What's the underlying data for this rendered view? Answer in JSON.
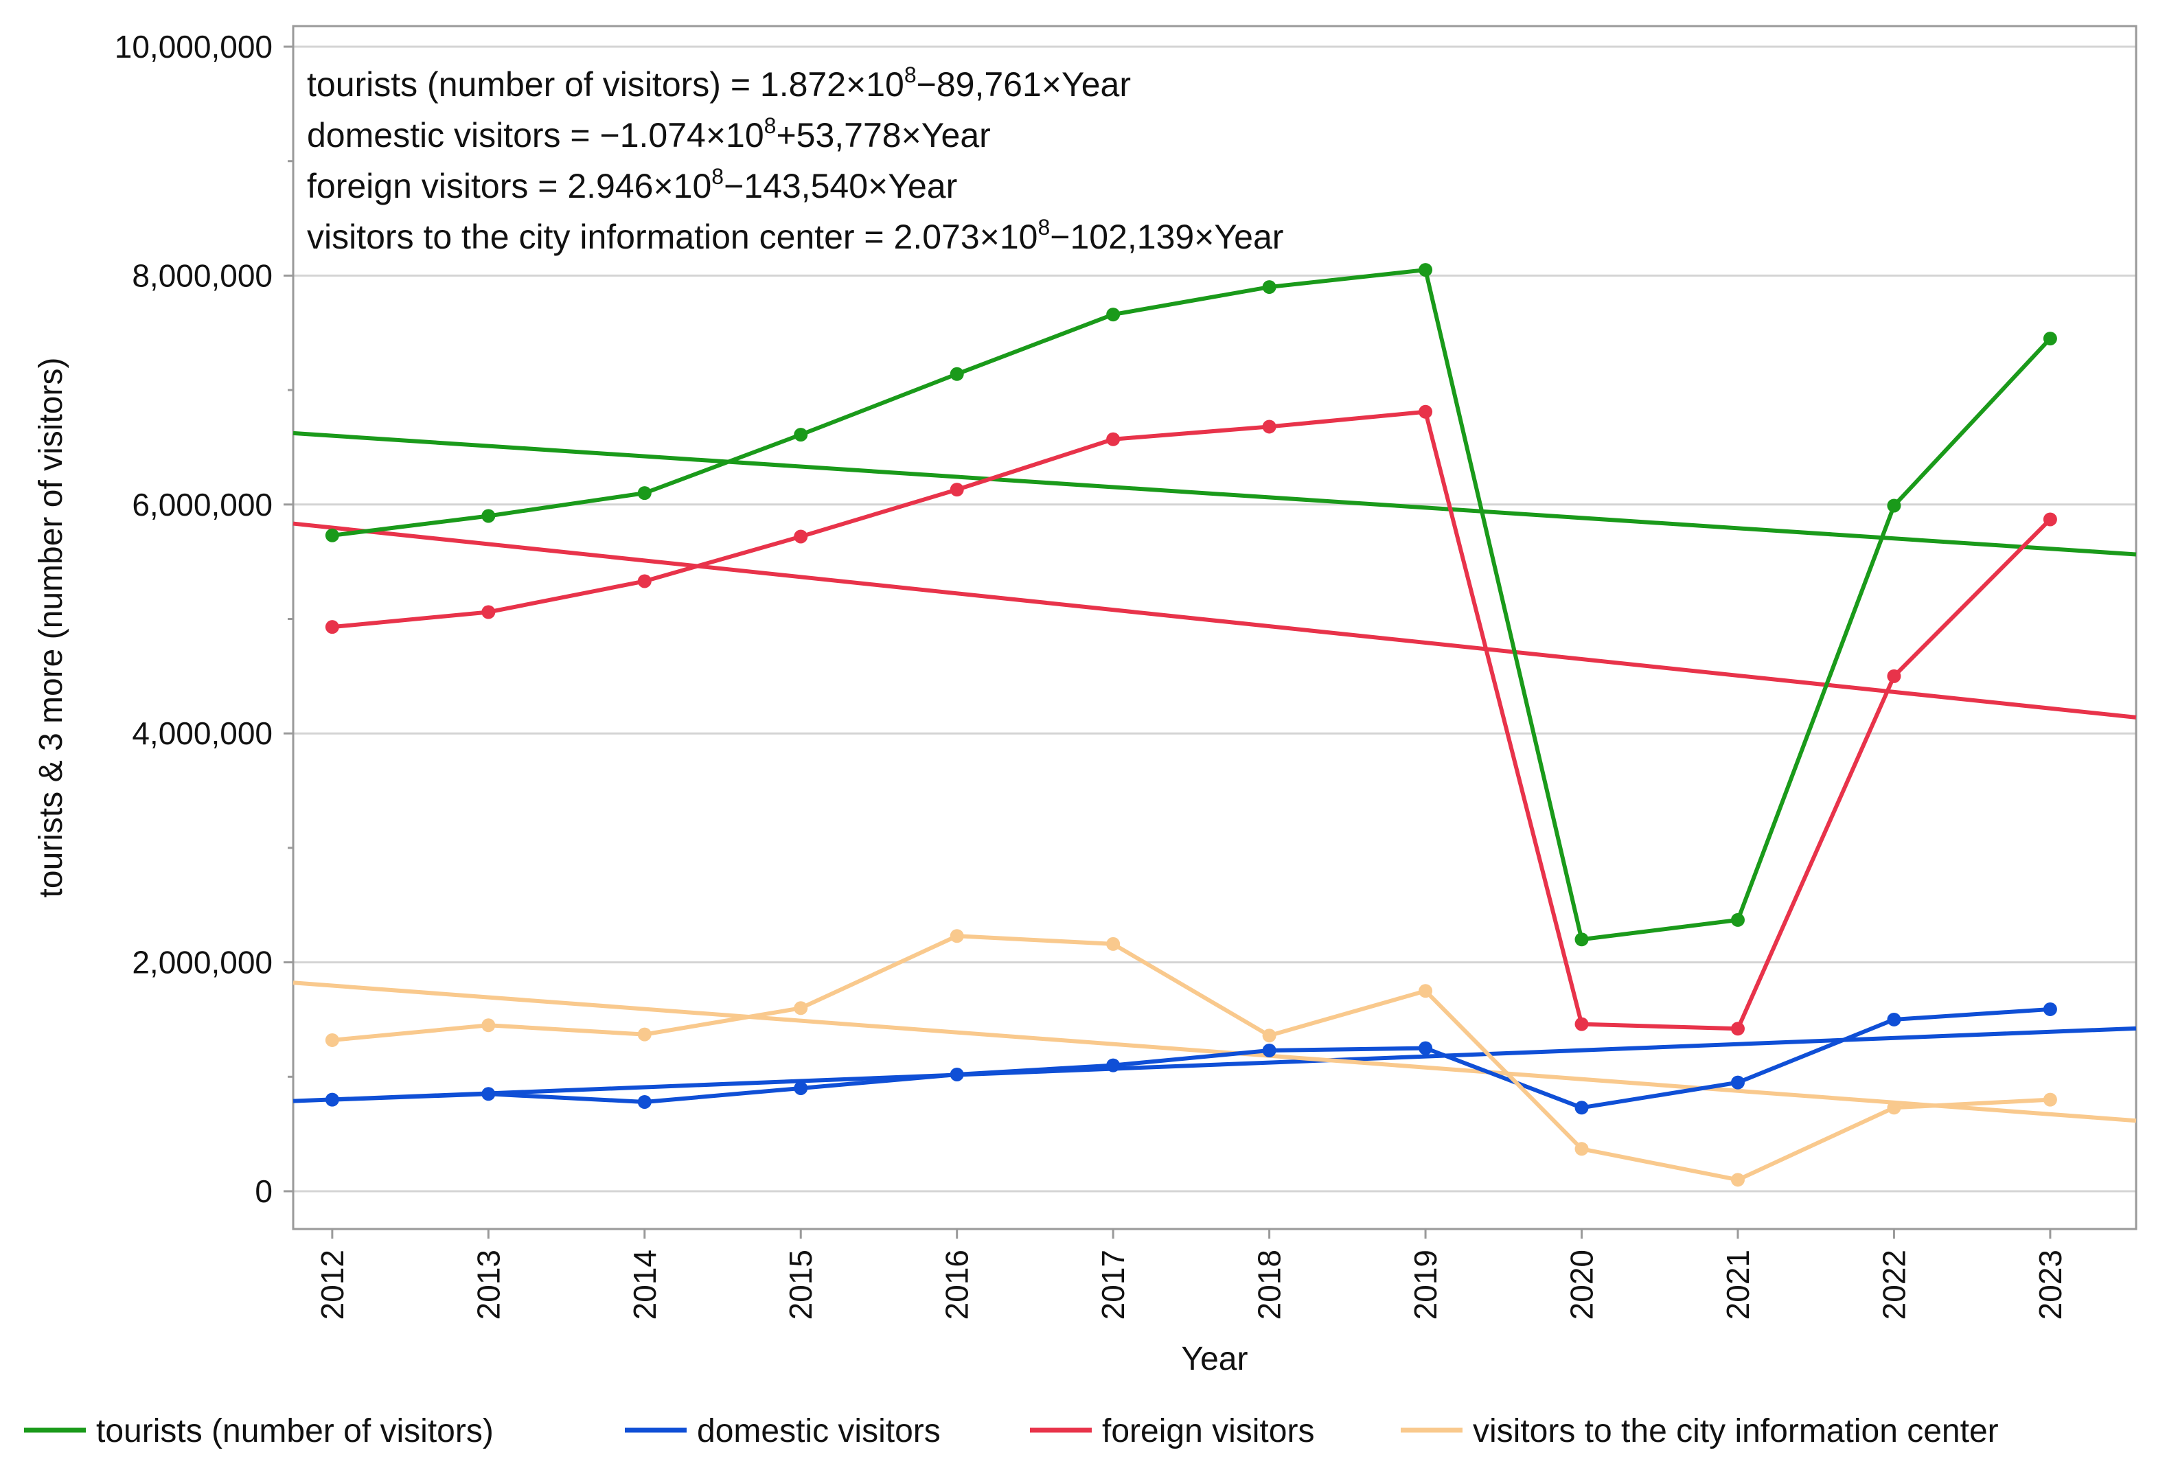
{
  "chart_data": {
    "type": "line",
    "title": "",
    "xlabel": "Year",
    "ylabel": "tourists & 3 more (number of visitors)",
    "categories": [
      "2012",
      "2013",
      "2014",
      "2015",
      "2016",
      "2017",
      "2018",
      "2019",
      "2020",
      "2021",
      "2022",
      "2023"
    ],
    "x": [
      2012,
      2013,
      2014,
      2015,
      2016,
      2017,
      2018,
      2019,
      2020,
      2021,
      2022,
      2023
    ],
    "xlim": [
      2011.75,
      2023.55
    ],
    "ylim": [
      -330000,
      10180000
    ],
    "yticks": [
      0,
      2000000,
      4000000,
      6000000,
      8000000,
      10000000
    ],
    "ytick_labels": [
      "0",
      "2,000,000",
      "4,000,000",
      "6,000,000",
      "8,000,000",
      "10,000,000"
    ],
    "grid": true,
    "legend_position": "bottom",
    "series": [
      {
        "name": "tourists (number of visitors)",
        "color": "#1a9a1a",
        "values": [
          5730000,
          5900000,
          6100000,
          6610000,
          7140000,
          7660000,
          7900000,
          8050000,
          2200000,
          2370000,
          5990000,
          7450000
        ],
        "trend": {
          "intercept": 187200000,
          "slope": -89761
        },
        "equation_prefix": "tourists (number of visitors) = 1.872×10",
        "equation_suffix": "−89,761×Year"
      },
      {
        "name": "domestic visitors",
        "color": "#0f4fd6",
        "values": [
          800000,
          850000,
          780000,
          900000,
          1020000,
          1100000,
          1230000,
          1250000,
          730000,
          950000,
          1500000,
          1590000
        ],
        "trend": {
          "intercept": -107400000,
          "slope": 53778
        },
        "equation_prefix": "domestic visitors = −1.074×10",
        "equation_suffix": "+53,778×Year"
      },
      {
        "name": "foreign visitors",
        "color": "#e8334a",
        "values": [
          4930000,
          5060000,
          5330000,
          5720000,
          6130000,
          6570000,
          6680000,
          6810000,
          1460000,
          1420000,
          4500000,
          5870000
        ],
        "trend": {
          "intercept": 294600000,
          "slope": -143540
        },
        "equation_prefix": "foreign visitors = 2.946×10",
        "equation_suffix": "−143,540×Year"
      },
      {
        "name": "visitors to the city information center",
        "color": "#f9c98d",
        "values": [
          1320000,
          1450000,
          1370000,
          1600000,
          2230000,
          2160000,
          1360000,
          1750000,
          370000,
          100000,
          730000,
          800000
        ],
        "trend": {
          "intercept": 207300000,
          "slope": -102139
        },
        "equation_prefix": "visitors to the city information center = 2.073×10",
        "equation_suffix": "−102,139×Year"
      }
    ],
    "equation_exponent": "8"
  }
}
